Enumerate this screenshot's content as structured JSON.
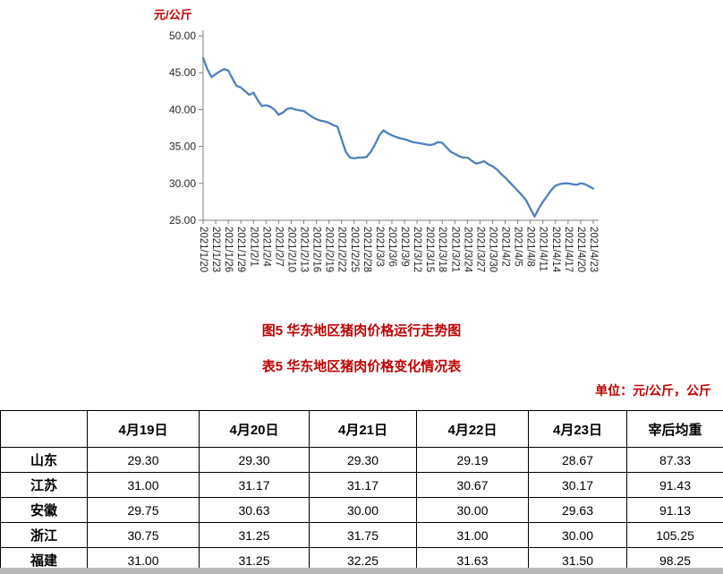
{
  "titles": {
    "figure_title": "图5 华东地区猪肉价格运行走势图",
    "table_title": "表5 华东地区猪肉价格变化情况表",
    "unit_note": "单位：元/公斤，公斤"
  },
  "colors": {
    "title_red": "#c00000",
    "line_blue": "#4f81bd",
    "axis_gray": "#7f7f7f"
  },
  "chart_data": {
    "type": "line",
    "title": "",
    "ylabel": "元/公斤",
    "xlabel": "",
    "ylim": [
      25,
      50
    ],
    "y_ticks": [
      "25.00",
      "30.00",
      "35.00",
      "40.00",
      "45.00",
      "50.00"
    ],
    "grid": false,
    "legend": "none",
    "line_color": "#4f81bd",
    "axis_color": "#7f7f7f",
    "x_tick_labels": [
      "2021/1/20",
      "2021/1/23",
      "2021/1/26",
      "2021/1/29",
      "2021/2/1",
      "2021/2/4",
      "2021/2/7",
      "2021/2/10",
      "2021/2/13",
      "2021/2/16",
      "2021/2/19",
      "2021/2/22",
      "2021/2/25",
      "2021/2/28",
      "2021/3/3",
      "2021/3/6",
      "2021/3/9",
      "2021/3/12",
      "2021/3/15",
      "2021/3/18",
      "2021/3/21",
      "2021/3/24",
      "2021/3/27",
      "2021/3/30",
      "2021/4/2",
      "2021/4/5",
      "2021/4/8",
      "2021/4/11",
      "2021/4/14",
      "2021/4/17",
      "2021/4/20",
      "2021/4/23"
    ],
    "x_tick_every_n_points": 3,
    "values": [
      47.0,
      45.5,
      44.4,
      44.8,
      45.2,
      45.5,
      45.3,
      44.2,
      43.2,
      43.0,
      42.5,
      42.0,
      42.3,
      41.3,
      40.5,
      40.6,
      40.4,
      40.0,
      39.3,
      39.6,
      40.1,
      40.2,
      40.0,
      39.9,
      39.8,
      39.4,
      39.0,
      38.7,
      38.5,
      38.4,
      38.2,
      37.9,
      37.7,
      36.0,
      34.3,
      33.5,
      33.4,
      33.5,
      33.5,
      33.6,
      34.3,
      35.3,
      36.5,
      37.2,
      36.8,
      36.5,
      36.3,
      36.1,
      36.0,
      35.8,
      35.6,
      35.5,
      35.4,
      35.3,
      35.2,
      35.3,
      35.6,
      35.5,
      34.9,
      34.3,
      34.0,
      33.7,
      33.5,
      33.5,
      33.1,
      32.7,
      32.8,
      33.0,
      32.6,
      32.3,
      31.9,
      31.3,
      30.8,
      30.2,
      29.6,
      29.0,
      28.4,
      27.7,
      26.6,
      25.5,
      26.6,
      27.5,
      28.3,
      29.1,
      29.7,
      29.9,
      30.0,
      30.0,
      29.9,
      29.8,
      30.0,
      29.9,
      29.6,
      29.3
    ]
  },
  "table": {
    "columns": [
      "",
      "4月19日",
      "4月20日",
      "4月21日",
      "4月22日",
      "4月23日",
      "宰后均重"
    ],
    "rows": [
      {
        "label": "山东",
        "values": [
          "29.30",
          "29.30",
          "29.30",
          "29.19",
          "28.67",
          "87.33"
        ]
      },
      {
        "label": "江苏",
        "values": [
          "31.00",
          "31.17",
          "31.17",
          "30.67",
          "30.17",
          "91.43"
        ]
      },
      {
        "label": "安徽",
        "values": [
          "29.75",
          "30.63",
          "30.00",
          "30.00",
          "29.63",
          "91.13"
        ]
      },
      {
        "label": "浙江",
        "values": [
          "30.75",
          "31.25",
          "31.75",
          "31.00",
          "30.00",
          "105.25"
        ]
      },
      {
        "label": "福建",
        "values": [
          "31.00",
          "31.25",
          "32.25",
          "31.63",
          "31.50",
          "98.25"
        ]
      }
    ]
  }
}
